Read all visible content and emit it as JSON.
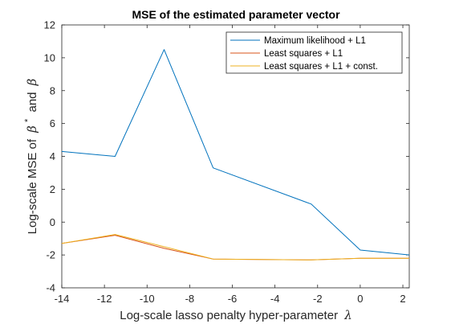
{
  "chart_data": {
    "type": "line",
    "title": "MSE of the estimated parameter vector",
    "xlabel": {
      "text": "Log-scale lasso penalty hyper-parameter",
      "symbol": "λ"
    },
    "ylabel": {
      "text": "Log-scale MSE of",
      "symbol1": "β",
      "superscript": "*",
      "connector": "and",
      "symbol2": "β"
    },
    "xlim": [
      -14,
      2.3
    ],
    "ylim": [
      -4,
      12
    ],
    "xticks": [
      -14,
      -12,
      -10,
      -8,
      -6,
      -4,
      -2,
      0,
      2
    ],
    "yticks": [
      -4,
      -2,
      0,
      2,
      4,
      6,
      8,
      10,
      12
    ],
    "grid": false,
    "legend_position": "top-right",
    "series": [
      {
        "name": "Maximum likelihood + L1",
        "color": "#0072BD",
        "x": [
          -14,
          -11.5,
          -9.2,
          -6.9,
          -2.3,
          0,
          2.3
        ],
        "y": [
          4.3,
          4.0,
          10.5,
          3.3,
          1.1,
          -1.7,
          -2.0
        ]
      },
      {
        "name": "Least squares + L1",
        "color": "#D95319",
        "x": [
          -14,
          -11.5,
          -9.2,
          -6.9,
          -2.3,
          0,
          2.3
        ],
        "y": [
          -1.3,
          -0.8,
          -1.6,
          -2.25,
          -2.3,
          -2.2,
          -2.2
        ]
      },
      {
        "name": "Least squares + L1 + const.",
        "color": "#EDB120",
        "x": [
          -14,
          -11.5,
          -9.2,
          -6.9,
          -2.3,
          0,
          2.3
        ],
        "y": [
          -1.3,
          -0.75,
          -1.5,
          -2.25,
          -2.3,
          -2.2,
          -2.2
        ]
      }
    ]
  }
}
